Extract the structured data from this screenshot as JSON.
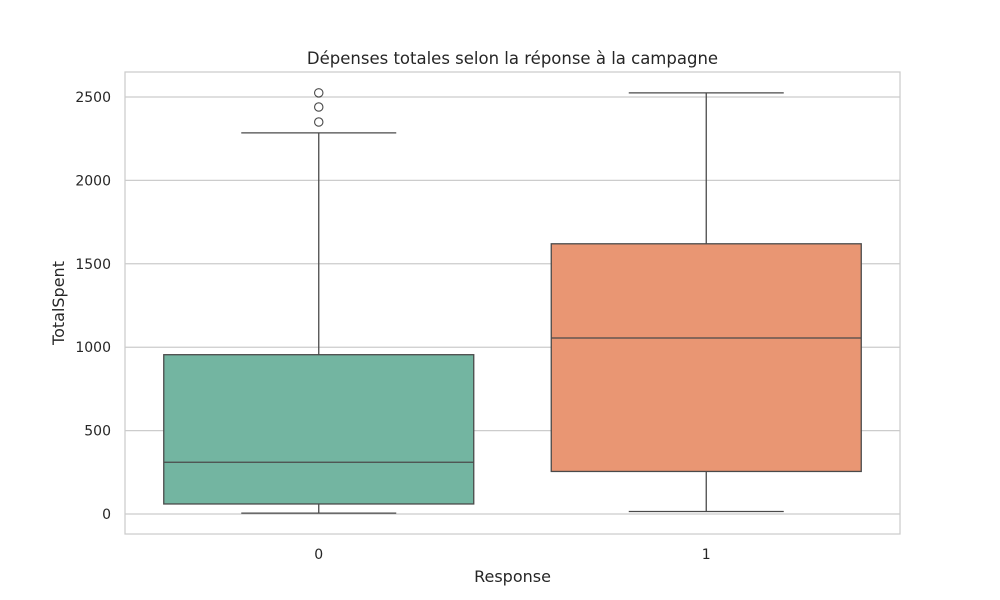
{
  "chart_data": {
    "type": "box",
    "title": "Dépenses totales selon la réponse à la campagne",
    "xlabel": "Response",
    "ylabel": "TotalSpent",
    "ylim": [
      -120,
      2650
    ],
    "yticks": [
      0,
      500,
      1000,
      1500,
      2000,
      2500
    ],
    "grid": true,
    "categories": [
      "0",
      "1"
    ],
    "boxes": [
      {
        "category": "0",
        "color": "#73b5a1",
        "whisker_low": 5,
        "q1": 60,
        "median": 310,
        "q3": 955,
        "whisker_high": 2285,
        "outliers": [
          2350,
          2440,
          2525
        ]
      },
      {
        "category": "1",
        "color": "#e99673",
        "whisker_low": 15,
        "q1": 255,
        "median": 1055,
        "q3": 1620,
        "whisker_high": 2525,
        "outliers": []
      }
    ]
  }
}
